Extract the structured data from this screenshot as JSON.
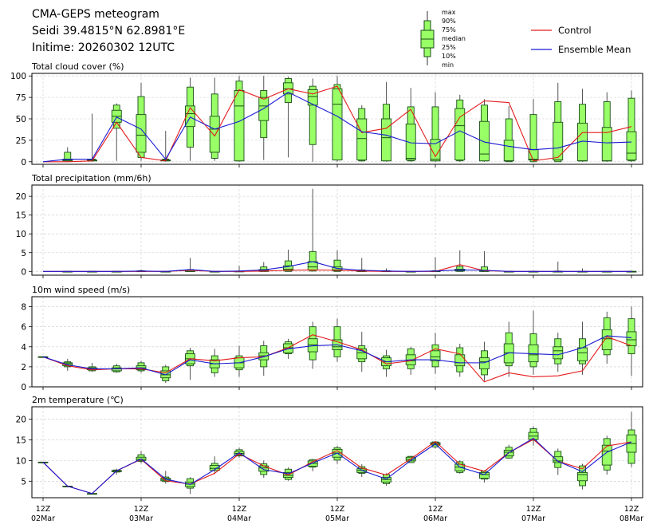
{
  "header": {
    "title_line1": "CMA-GEPS meteogram",
    "title_line2": "Seidi 39.4815°N 62.8981°E",
    "title_line3": "Initime: 20260302 12UTC"
  },
  "legend": {
    "box_labels": [
      "max",
      "90%",
      "75%",
      "median",
      "25%",
      "10%",
      "min"
    ],
    "control_label": "Control",
    "mean_label": "Ensemble Mean",
    "colors": {
      "control": "#e41a1c",
      "mean": "#1a1ad4",
      "box_fill": "#99ff66",
      "box_edge": "#1a4d1a"
    }
  },
  "chart_data": [
    {
      "type": "boxplot",
      "title": "Total cloud cover (%)",
      "ylim": [
        -3,
        103
      ],
      "yticks": [
        0,
        25,
        50,
        75,
        100
      ],
      "x_tick_labels": [
        [
          "12Z",
          "02Mar"
        ],
        [
          "12Z",
          "03Mar"
        ],
        [
          "12Z",
          "04Mar"
        ],
        [
          "12Z",
          "05Mar"
        ],
        [
          "12Z",
          "06Mar"
        ],
        [
          "12Z",
          "07Mar"
        ],
        [
          "12Z",
          "08Mar"
        ]
      ],
      "x_step_hours": 6,
      "boxes": [
        null,
        [
          0,
          1,
          1,
          2,
          3,
          11,
          17
        ],
        [
          0,
          1,
          1,
          2,
          2,
          3,
          56
        ],
        [
          1,
          39,
          46,
          53,
          60,
          66,
          68
        ],
        [
          1,
          5,
          11,
          31,
          55,
          76,
          92
        ],
        [
          0,
          1,
          1,
          2,
          2,
          3,
          36
        ],
        [
          1,
          17,
          41,
          56,
          65,
          87,
          98
        ],
        [
          1,
          4,
          11,
          38,
          53,
          79,
          98
        ],
        [
          0,
          1,
          1,
          65,
          83,
          94,
          100
        ],
        [
          2,
          28,
          48,
          65,
          75,
          83,
          100
        ],
        [
          5,
          69,
          79,
          85,
          92,
          97,
          99
        ],
        [
          0,
          20,
          66,
          76,
          84,
          88,
          97
        ],
        [
          0,
          2,
          2,
          67,
          85,
          90,
          100
        ],
        [
          0,
          1,
          2,
          27,
          50,
          62,
          66
        ],
        [
          0,
          1,
          1,
          28,
          50,
          67,
          93
        ],
        [
          0,
          1,
          2,
          4,
          44,
          64,
          86
        ],
        [
          0,
          1,
          1,
          3,
          26,
          64,
          81
        ],
        [
          0,
          1,
          2,
          42,
          62,
          72,
          78
        ],
        [
          0,
          1,
          1,
          9,
          47,
          66,
          73
        ],
        [
          0,
          0,
          1,
          1,
          25,
          50,
          65
        ],
        [
          0,
          0,
          2,
          3,
          14,
          55,
          73
        ],
        [
          0,
          0,
          2,
          2,
          46,
          70,
          92
        ],
        [
          0,
          1,
          1,
          1,
          45,
          67,
          85
        ],
        [
          0,
          1,
          1,
          1,
          40,
          70,
          81
        ],
        [
          0,
          1,
          2,
          10,
          35,
          74,
          83
        ]
      ],
      "control": [
        0,
        0,
        1,
        46,
        5,
        1,
        63,
        30,
        84,
        73,
        85,
        79,
        88,
        34,
        39,
        61,
        6,
        52,
        71,
        69,
        1,
        5,
        34,
        34,
        41
      ],
      "mean": [
        0,
        3,
        3,
        52,
        38,
        3,
        52,
        38,
        47,
        62,
        81,
        67,
        53,
        35,
        31,
        22,
        21,
        36,
        23,
        18,
        14,
        16,
        24,
        22,
        23
      ]
    },
    {
      "type": "boxplot",
      "title": "Total precipitation (mm/6h)",
      "ylim": [
        -1,
        23
      ],
      "yticks": [
        0,
        5,
        10,
        15,
        20
      ],
      "boxes": [
        null,
        [
          0,
          0,
          0,
          0,
          0,
          0,
          0
        ],
        [
          0,
          0,
          0,
          0,
          0,
          0,
          0
        ],
        [
          0,
          0,
          0,
          0,
          0,
          0,
          0
        ],
        [
          0,
          0,
          0,
          0,
          0.1,
          0.2,
          0.5
        ],
        [
          0,
          0,
          0,
          0,
          0,
          0,
          0
        ],
        [
          0,
          0,
          0,
          0,
          0.3,
          0.5,
          3.6
        ],
        [
          0,
          0,
          0,
          0,
          0,
          0,
          0
        ],
        [
          0,
          0,
          0,
          0,
          0.05,
          0.1,
          1.5
        ],
        [
          0,
          0,
          0,
          0.3,
          0.5,
          1.2,
          2.5
        ],
        [
          0,
          0,
          0.2,
          0.6,
          1.5,
          2.8,
          5.8
        ],
        [
          0,
          0.1,
          0.4,
          1.2,
          2.6,
          5.3,
          22
        ],
        [
          0,
          0,
          0.2,
          0.4,
          1.2,
          3.0,
          5.6
        ],
        [
          0,
          0,
          0,
          0,
          0.2,
          0.4,
          3.6
        ],
        [
          0,
          0,
          0,
          0,
          0.1,
          0.2,
          0.8
        ],
        [
          0,
          0,
          0,
          0,
          0,
          0,
          0
        ],
        [
          0,
          0,
          0,
          0,
          0.1,
          0.2,
          3.8
        ],
        [
          0,
          0,
          0.1,
          0.3,
          0.6,
          1.3,
          5.6
        ],
        [
          0,
          0,
          0,
          0.1,
          0.3,
          1.2,
          5.4
        ],
        [
          0,
          0,
          0,
          0,
          0,
          0,
          0
        ],
        [
          0,
          0,
          0,
          0,
          0,
          0,
          0.2
        ],
        [
          0,
          0,
          0,
          0,
          0,
          0.1,
          2.6
        ],
        [
          0,
          0,
          0,
          0,
          0,
          0,
          0.8
        ],
        [
          0,
          0,
          0,
          0,
          0,
          0,
          0
        ],
        [
          0,
          0,
          0,
          0,
          0,
          0,
          0
        ]
      ],
      "control": [
        0,
        0,
        0,
        0,
        0,
        0,
        0.3,
        0,
        0,
        0.1,
        0.3,
        0.4,
        0.3,
        0.1,
        0,
        0,
        0,
        1.8,
        0.2,
        0,
        0,
        0,
        0,
        0,
        0
      ],
      "mean": [
        0,
        0,
        0,
        0,
        0.1,
        0,
        0.5,
        0,
        0.1,
        0.4,
        1.3,
        2.6,
        0.8,
        0.3,
        0.1,
        0,
        0.1,
        0.4,
        0.3,
        0,
        0,
        0,
        0,
        0,
        0
      ]
    },
    {
      "type": "boxplot",
      "title": "10m wind speed (m/s)",
      "ylim": [
        0,
        9
      ],
      "yticks": [
        0,
        2,
        4,
        6,
        8
      ],
      "boxes": [
        [
          3.0,
          3.0,
          3.0,
          3.0,
          3.0,
          3.0,
          3.0
        ],
        [
          1.6,
          2.0,
          2.1,
          2.3,
          2.4,
          2.5,
          2.8
        ],
        [
          1.5,
          1.6,
          1.7,
          1.8,
          1.9,
          2.0,
          2.4
        ],
        [
          1.4,
          1.5,
          1.6,
          1.8,
          1.9,
          2.1,
          2.3
        ],
        [
          1.4,
          1.6,
          1.7,
          1.9,
          2.1,
          2.4,
          2.6
        ],
        [
          0.4,
          0.6,
          0.9,
          1.2,
          1.6,
          2.0,
          2.2
        ],
        [
          0.7,
          2.1,
          2.3,
          2.8,
          3.3,
          3.6,
          3.9
        ],
        [
          1.0,
          1.4,
          1.9,
          2.3,
          2.7,
          3.1,
          3.8
        ],
        [
          1.0,
          1.7,
          1.9,
          2.4,
          2.9,
          3.1,
          4.1
        ],
        [
          1.1,
          2.0,
          2.7,
          3.1,
          3.4,
          4.1,
          4.6
        ],
        [
          2.8,
          3.3,
          3.4,
          3.9,
          4.3,
          4.5,
          4.8
        ],
        [
          1.8,
          2.7,
          3.5,
          4.2,
          4.8,
          6.0,
          6.5
        ],
        [
          2.5,
          3.0,
          3.7,
          4.0,
          4.7,
          6.0,
          6.8
        ],
        [
          1.5,
          2.5,
          2.8,
          3.4,
          3.8,
          4.1,
          5.5
        ],
        [
          1.0,
          1.8,
          2.1,
          2.5,
          2.9,
          3.1,
          3.7
        ],
        [
          1.2,
          1.8,
          2.2,
          2.6,
          3.2,
          3.8,
          4.0
        ],
        [
          1.3,
          2.0,
          2.6,
          3.0,
          3.6,
          4.2,
          5.4
        ],
        [
          1.0,
          1.5,
          2.1,
          2.4,
          3.2,
          3.9,
          4.3
        ],
        [
          0.6,
          1.2,
          1.8,
          2.5,
          2.9,
          3.6,
          4.5
        ],
        [
          1.0,
          2.1,
          2.4,
          3.4,
          4.3,
          5.4,
          6.5
        ],
        [
          1.2,
          2.0,
          2.5,
          3.2,
          4.2,
          5.3,
          7.6
        ],
        [
          1.5,
          2.3,
          2.8,
          3.6,
          4.0,
          4.8,
          5.4
        ],
        [
          1.2,
          2.3,
          2.6,
          3.4,
          3.9,
          4.8,
          6.5
        ],
        [
          2.3,
          3.2,
          3.7,
          4.8,
          5.7,
          6.9,
          7.5
        ],
        [
          1.1,
          3.3,
          4.1,
          4.7,
          5.5,
          6.8,
          8.0
        ]
      ],
      "control": [
        3.0,
        2.1,
        1.7,
        1.8,
        1.8,
        1.4,
        2.8,
        2.6,
        2.9,
        3.0,
        3.9,
        5.2,
        4.5,
        3.7,
        2.3,
        2.6,
        3.8,
        3.3,
        0.5,
        1.4,
        1.0,
        1.1,
        1.6,
        5.0,
        4.1
      ],
      "mean": [
        3.0,
        2.2,
        1.8,
        1.8,
        1.9,
        1.2,
        2.7,
        2.3,
        2.4,
        3.0,
        3.8,
        4.1,
        4.2,
        3.6,
        2.5,
        2.7,
        2.7,
        2.4,
        2.4,
        3.4,
        3.3,
        3.2,
        3.9,
        5.1,
        4.9
      ]
    },
    {
      "type": "boxplot",
      "title": "2m temperature (℃)",
      "ylim": [
        1,
        23
      ],
      "yticks": [
        5,
        10,
        15,
        20
      ],
      "boxes": [
        [
          9.6,
          9.6,
          9.6,
          9.6,
          9.6,
          9.6,
          9.6
        ],
        [
          3.7,
          3.7,
          3.7,
          3.8,
          3.8,
          3.8,
          3.9
        ],
        [
          1.9,
          2.0,
          2.0,
          2.0,
          2.0,
          2.0,
          2.1
        ],
        [
          6.6,
          7.2,
          7.3,
          7.5,
          7.6,
          7.7,
          8.0
        ],
        [
          9.3,
          9.8,
          10.0,
          10.3,
          10.8,
          11.4,
          12.3
        ],
        [
          4.4,
          4.9,
          5.1,
          5.4,
          5.7,
          6.0,
          7.5
        ],
        [
          1.9,
          3.3,
          3.7,
          4.3,
          4.8,
          5.6,
          6.0
        ],
        [
          6.7,
          7.6,
          7.6,
          8.1,
          8.8,
          9.3,
          11.0
        ],
        [
          10.7,
          11.1,
          11.3,
          11.7,
          12.2,
          12.6,
          13.1
        ],
        [
          5.8,
          6.6,
          7.4,
          8.2,
          8.7,
          9.2,
          10.0
        ],
        [
          5.1,
          5.4,
          5.9,
          6.4,
          7.1,
          7.9,
          8.3
        ],
        [
          7.4,
          8.4,
          8.6,
          9.3,
          9.9,
          10.2,
          10.4
        ],
        [
          9.2,
          10.1,
          10.8,
          11.8,
          12.7,
          13.1,
          13.6
        ],
        [
          6.0,
          6.9,
          7.1,
          7.6,
          8.0,
          8.5,
          9.1
        ],
        [
          3.9,
          4.4,
          4.8,
          5.4,
          5.9,
          6.6,
          6.9
        ],
        [
          9.4,
          9.5,
          9.9,
          10.3,
          10.8,
          11.0,
          11.1
        ],
        [
          12.9,
          13.3,
          13.8,
          14.1,
          14.3,
          14.5,
          14.6
        ],
        [
          6.8,
          7.1,
          7.5,
          8.4,
          9.1,
          9.7,
          10.0
        ],
        [
          4.7,
          5.5,
          5.7,
          6.6,
          7.1,
          7.4,
          7.6
        ],
        [
          10.4,
          10.6,
          11.1,
          12.0,
          12.5,
          13.2,
          13.8
        ],
        [
          13.6,
          14.9,
          15.1,
          15.9,
          16.8,
          17.7,
          18.3
        ],
        [
          6.5,
          8.3,
          9.5,
          9.9,
          10.9,
          12.2,
          12.9
        ],
        [
          3.0,
          3.9,
          5.1,
          6.6,
          7.1,
          8.7,
          9.2
        ],
        [
          6.6,
          7.7,
          8.9,
          12.3,
          13.7,
          15.3,
          16.0
        ],
        [
          8.4,
          9.3,
          12.0,
          14.1,
          16.2,
          17.4,
          21.8
        ]
      ],
      "control": [
        9.6,
        3.8,
        2.0,
        7.5,
        10.3,
        5.1,
        4.3,
        6.9,
        11.6,
        8.7,
        6.5,
        9.7,
        12.4,
        8.2,
        6.5,
        10.4,
        14.6,
        9.1,
        7.4,
        11.9,
        15.1,
        9.8,
        8.0,
        13.5,
        14.5
      ],
      "mean": [
        9.6,
        3.8,
        2.0,
        7.5,
        10.4,
        5.5,
        4.2,
        7.8,
        11.9,
        7.8,
        6.8,
        9.4,
        11.8,
        7.6,
        5.5,
        10.0,
        14.0,
        8.4,
        6.6,
        11.9,
        15.4,
        9.8,
        7.3,
        12.0,
        14.5
      ]
    }
  ]
}
